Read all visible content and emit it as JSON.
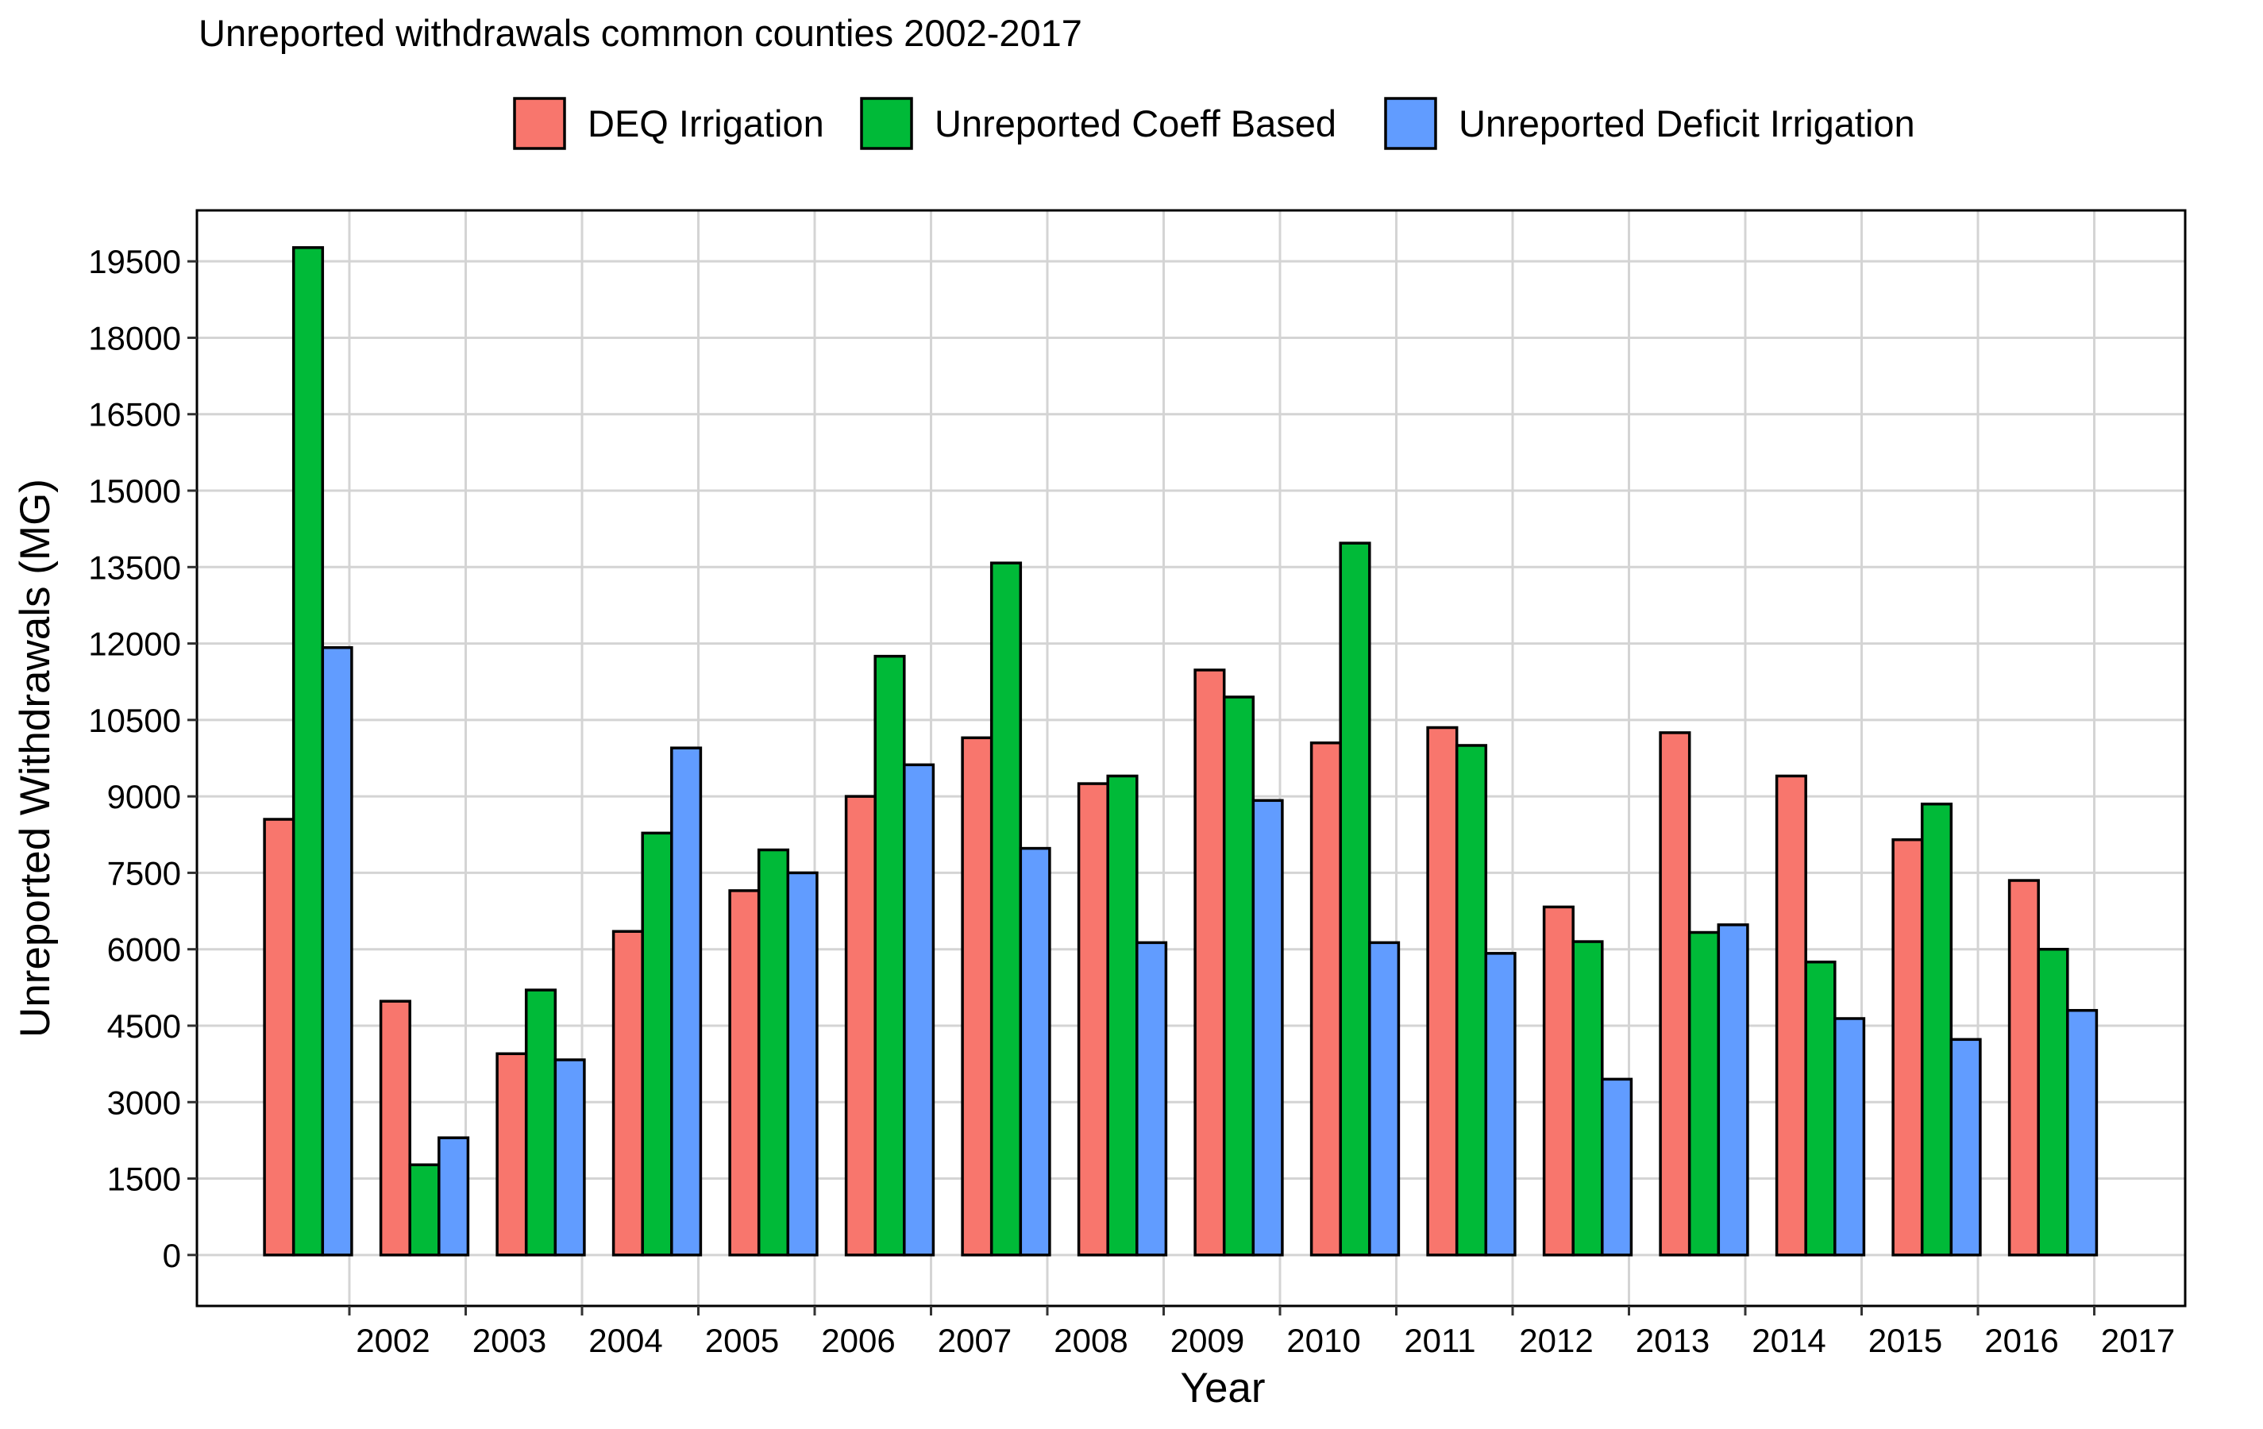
{
  "chart_data": {
    "type": "bar",
    "title": "Unreported withdrawals common counties 2002-2017",
    "xlabel": "Year",
    "ylabel": "Unreported Withdrawals (MG)",
    "ylim": [
      -1000,
      20500
    ],
    "yticks": [
      0,
      1500,
      3000,
      4500,
      6000,
      7500,
      9000,
      10500,
      12000,
      13500,
      15000,
      16500,
      18000,
      19500
    ],
    "grid": true,
    "legend_position": "top",
    "categories": [
      "2002",
      "2003",
      "2004",
      "2005",
      "2006",
      "2007",
      "2008",
      "2009",
      "2010",
      "2011",
      "2012",
      "2013",
      "2014",
      "2015",
      "2016",
      "2017"
    ],
    "series": [
      {
        "name": "DEQ Irrigation",
        "color": "#F8766D",
        "values": [
          8550,
          4980,
          3950,
          6350,
          7150,
          9000,
          10150,
          9250,
          11480,
          10050,
          10350,
          6830,
          10250,
          9400,
          8150,
          7350
        ]
      },
      {
        "name": "Unreported Coeff Based",
        "color": "#00BA38",
        "values": [
          19770,
          1770,
          5200,
          8280,
          7950,
          11750,
          13580,
          9400,
          10950,
          13970,
          10000,
          6150,
          6330,
          5750,
          8850,
          6000
        ]
      },
      {
        "name": "Unreported Deficit Irrigation",
        "color": "#619CFF",
        "values": [
          11920,
          2300,
          3830,
          9950,
          7500,
          9620,
          7980,
          6130,
          8920,
          6130,
          5920,
          3450,
          6480,
          4640,
          4230,
          4800
        ]
      }
    ]
  }
}
